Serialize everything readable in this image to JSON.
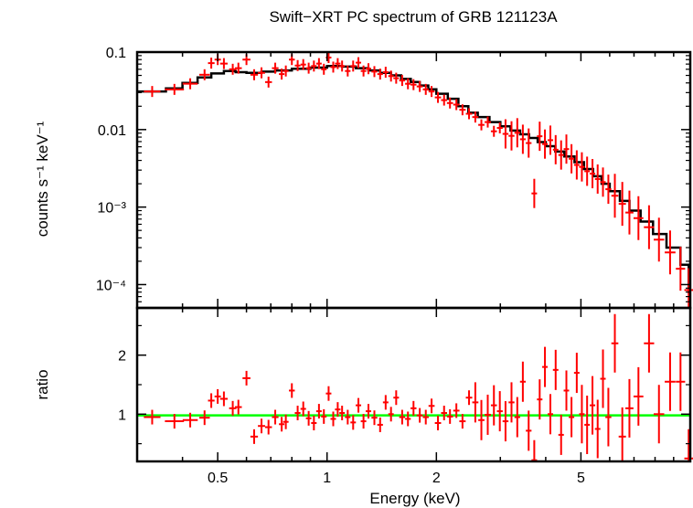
{
  "chart_data": [
    {
      "type": "scatter",
      "title": "Swift−XRT PC spectrum of GRB 121123A",
      "ylabel": "counts s⁻¹ keV⁻¹",
      "xlabel": "",
      "xscale": "log",
      "yscale": "log",
      "xlim": [
        0.3,
        10
      ],
      "ylim": [
        5e-05,
        0.1
      ],
      "yticks": [
        "0.1",
        "0.01",
        "10⁻³",
        "10⁻⁴"
      ],
      "series": [
        {
          "style": "error-bars",
          "color": "#ff0000",
          "points": [
            {
              "x": 0.33,
              "y": 0.031
            },
            {
              "x": 0.38,
              "y": 0.033
            },
            {
              "x": 0.42,
              "y": 0.039
            },
            {
              "x": 0.46,
              "y": 0.051
            },
            {
              "x": 0.48,
              "y": 0.072
            },
            {
              "x": 0.5,
              "y": 0.08
            },
            {
              "x": 0.52,
              "y": 0.071
            },
            {
              "x": 0.55,
              "y": 0.06
            },
            {
              "x": 0.57,
              "y": 0.062
            },
            {
              "x": 0.6,
              "y": 0.08
            },
            {
              "x": 0.63,
              "y": 0.051
            },
            {
              "x": 0.66,
              "y": 0.054
            },
            {
              "x": 0.69,
              "y": 0.041
            },
            {
              "x": 0.72,
              "y": 0.062
            },
            {
              "x": 0.75,
              "y": 0.052
            },
            {
              "x": 0.77,
              "y": 0.057
            },
            {
              "x": 0.8,
              "y": 0.08
            },
            {
              "x": 0.83,
              "y": 0.067
            },
            {
              "x": 0.86,
              "y": 0.069
            },
            {
              "x": 0.89,
              "y": 0.062
            },
            {
              "x": 0.92,
              "y": 0.066
            },
            {
              "x": 0.95,
              "y": 0.071
            },
            {
              "x": 0.98,
              "y": 0.06
            },
            {
              "x": 1.01,
              "y": 0.085
            },
            {
              "x": 1.04,
              "y": 0.064
            },
            {
              "x": 1.07,
              "y": 0.071
            },
            {
              "x": 1.1,
              "y": 0.066
            },
            {
              "x": 1.14,
              "y": 0.057
            },
            {
              "x": 1.18,
              "y": 0.066
            },
            {
              "x": 1.22,
              "y": 0.073
            },
            {
              "x": 1.26,
              "y": 0.057
            },
            {
              "x": 1.3,
              "y": 0.061
            },
            {
              "x": 1.35,
              "y": 0.056
            },
            {
              "x": 1.4,
              "y": 0.052
            },
            {
              "x": 1.45,
              "y": 0.055
            },
            {
              "x": 1.5,
              "y": 0.049
            },
            {
              "x": 1.55,
              "y": 0.046
            },
            {
              "x": 1.61,
              "y": 0.043
            },
            {
              "x": 1.67,
              "y": 0.039
            },
            {
              "x": 1.73,
              "y": 0.038
            },
            {
              "x": 1.8,
              "y": 0.036
            },
            {
              "x": 1.87,
              "y": 0.033
            },
            {
              "x": 1.94,
              "y": 0.031
            },
            {
              "x": 2.02,
              "y": 0.026
            },
            {
              "x": 2.1,
              "y": 0.024
            },
            {
              "x": 2.18,
              "y": 0.022
            },
            {
              "x": 2.27,
              "y": 0.021
            },
            {
              "x": 2.36,
              "y": 0.018
            },
            {
              "x": 2.46,
              "y": 0.016
            },
            {
              "x": 2.56,
              "y": 0.0145
            },
            {
              "x": 2.66,
              "y": 0.0115
            },
            {
              "x": 2.77,
              "y": 0.0125
            },
            {
              "x": 2.88,
              "y": 0.0095
            },
            {
              "x": 2.99,
              "y": 0.0105
            },
            {
              "x": 3.1,
              "y": 0.0088
            },
            {
              "x": 3.22,
              "y": 0.0083
            },
            {
              "x": 3.34,
              "y": 0.0091
            },
            {
              "x": 3.46,
              "y": 0.0075
            },
            {
              "x": 3.59,
              "y": 0.0067
            },
            {
              "x": 3.72,
              "y": 0.0015
            },
            {
              "x": 3.85,
              "y": 0.0082
            },
            {
              "x": 3.98,
              "y": 0.0065
            },
            {
              "x": 4.12,
              "y": 0.0073
            },
            {
              "x": 4.26,
              "y": 0.0055
            },
            {
              "x": 4.41,
              "y": 0.0047
            },
            {
              "x": 4.56,
              "y": 0.0056
            },
            {
              "x": 4.71,
              "y": 0.0042
            },
            {
              "x": 4.87,
              "y": 0.0035
            },
            {
              "x": 5.03,
              "y": 0.0033
            },
            {
              "x": 5.2,
              "y": 0.0029
            },
            {
              "x": 5.38,
              "y": 0.0027
            },
            {
              "x": 5.56,
              "y": 0.0023
            },
            {
              "x": 5.75,
              "y": 0.0021
            },
            {
              "x": 5.95,
              "y": 0.0017
            },
            {
              "x": 6.2,
              "y": 0.0014
            },
            {
              "x": 6.5,
              "y": 0.0011
            },
            {
              "x": 6.8,
              "y": 0.00085
            },
            {
              "x": 7.2,
              "y": 0.00072
            },
            {
              "x": 7.7,
              "y": 0.00055
            },
            {
              "x": 8.2,
              "y": 0.00038
            },
            {
              "x": 8.8,
              "y": 0.00026
            },
            {
              "x": 9.4,
              "y": 0.00016
            },
            {
              "x": 9.9,
              "y": 8.5e-05
            }
          ]
        },
        {
          "style": "step-model",
          "color": "#000000",
          "points": [
            {
              "x": 0.3,
              "y": 0.031
            },
            {
              "x": 0.36,
              "y": 0.034
            },
            {
              "x": 0.4,
              "y": 0.04
            },
            {
              "x": 0.44,
              "y": 0.047
            },
            {
              "x": 0.48,
              "y": 0.053
            },
            {
              "x": 0.52,
              "y": 0.057
            },
            {
              "x": 0.56,
              "y": 0.055
            },
            {
              "x": 0.6,
              "y": 0.054
            },
            {
              "x": 0.66,
              "y": 0.056
            },
            {
              "x": 0.72,
              "y": 0.058
            },
            {
              "x": 0.8,
              "y": 0.061
            },
            {
              "x": 0.9,
              "y": 0.063
            },
            {
              "x": 1.0,
              "y": 0.066
            },
            {
              "x": 1.1,
              "y": 0.065
            },
            {
              "x": 1.2,
              "y": 0.062
            },
            {
              "x": 1.3,
              "y": 0.058
            },
            {
              "x": 1.4,
              "y": 0.054
            },
            {
              "x": 1.5,
              "y": 0.05
            },
            {
              "x": 1.6,
              "y": 0.045
            },
            {
              "x": 1.7,
              "y": 0.041
            },
            {
              "x": 1.8,
              "y": 0.037
            },
            {
              "x": 1.9,
              "y": 0.033
            },
            {
              "x": 2.0,
              "y": 0.029
            },
            {
              "x": 2.15,
              "y": 0.025
            },
            {
              "x": 2.3,
              "y": 0.02
            },
            {
              "x": 2.45,
              "y": 0.0165
            },
            {
              "x": 2.6,
              "y": 0.0145
            },
            {
              "x": 2.8,
              "y": 0.0125
            },
            {
              "x": 3.0,
              "y": 0.011
            },
            {
              "x": 3.2,
              "y": 0.0097
            },
            {
              "x": 3.4,
              "y": 0.0087
            },
            {
              "x": 3.6,
              "y": 0.0078
            },
            {
              "x": 3.8,
              "y": 0.0069
            },
            {
              "x": 4.0,
              "y": 0.0061
            },
            {
              "x": 4.25,
              "y": 0.0052
            },
            {
              "x": 4.5,
              "y": 0.0045
            },
            {
              "x": 4.8,
              "y": 0.0038
            },
            {
              "x": 5.1,
              "y": 0.0031
            },
            {
              "x": 5.4,
              "y": 0.0025
            },
            {
              "x": 5.7,
              "y": 0.002
            },
            {
              "x": 6.0,
              "y": 0.0016
            },
            {
              "x": 6.4,
              "y": 0.0012
            },
            {
              "x": 6.8,
              "y": 0.0009
            },
            {
              "x": 7.3,
              "y": 0.00065
            },
            {
              "x": 7.9,
              "y": 0.00045
            },
            {
              "x": 8.6,
              "y": 0.0003
            },
            {
              "x": 9.4,
              "y": 0.00018
            },
            {
              "x": 9.9,
              "y": 8e-05
            }
          ]
        }
      ]
    },
    {
      "type": "scatter",
      "xlabel": "Energy (keV)",
      "ylabel": "ratio",
      "xscale": "log",
      "xlim": [
        0.3,
        10
      ],
      "ylim": [
        0.2,
        2.8
      ],
      "xticks": [
        "0.5",
        "1",
        "2",
        "5"
      ],
      "yticks": [
        "1",
        "2"
      ],
      "reference_line": {
        "y": 0.98,
        "color": "#00ff00"
      },
      "series": [
        {
          "style": "error-bars",
          "color": "#ff0000",
          "points": [
            {
              "x": 0.33,
              "y": 0.95
            },
            {
              "x": 0.38,
              "y": 0.88
            },
            {
              "x": 0.42,
              "y": 0.9
            },
            {
              "x": 0.46,
              "y": 0.94
            },
            {
              "x": 0.48,
              "y": 1.23
            },
            {
              "x": 0.5,
              "y": 1.3
            },
            {
              "x": 0.52,
              "y": 1.26
            },
            {
              "x": 0.55,
              "y": 1.1
            },
            {
              "x": 0.57,
              "y": 1.12
            },
            {
              "x": 0.6,
              "y": 1.61
            },
            {
              "x": 0.63,
              "y": 0.62
            },
            {
              "x": 0.66,
              "y": 0.8
            },
            {
              "x": 0.69,
              "y": 0.78
            },
            {
              "x": 0.72,
              "y": 0.95
            },
            {
              "x": 0.75,
              "y": 0.83
            },
            {
              "x": 0.77,
              "y": 0.87
            },
            {
              "x": 0.8,
              "y": 1.4
            },
            {
              "x": 0.83,
              "y": 1.02
            },
            {
              "x": 0.86,
              "y": 1.09
            },
            {
              "x": 0.89,
              "y": 0.93
            },
            {
              "x": 0.92,
              "y": 0.85
            },
            {
              "x": 0.95,
              "y": 1.05
            },
            {
              "x": 0.98,
              "y": 0.96
            },
            {
              "x": 1.01,
              "y": 1.35
            },
            {
              "x": 1.04,
              "y": 0.92
            },
            {
              "x": 1.07,
              "y": 1.08
            },
            {
              "x": 1.1,
              "y": 1.02
            },
            {
              "x": 1.14,
              "y": 0.95
            },
            {
              "x": 1.18,
              "y": 0.86
            },
            {
              "x": 1.22,
              "y": 1.15
            },
            {
              "x": 1.26,
              "y": 0.88
            },
            {
              "x": 1.3,
              "y": 1.05
            },
            {
              "x": 1.35,
              "y": 0.94
            },
            {
              "x": 1.4,
              "y": 0.82
            },
            {
              "x": 1.45,
              "y": 1.2
            },
            {
              "x": 1.5,
              "y": 1.0
            },
            {
              "x": 1.55,
              "y": 1.28
            },
            {
              "x": 1.61,
              "y": 0.95
            },
            {
              "x": 1.67,
              "y": 0.92
            },
            {
              "x": 1.73,
              "y": 1.1
            },
            {
              "x": 1.8,
              "y": 0.98
            },
            {
              "x": 1.87,
              "y": 0.95
            },
            {
              "x": 1.94,
              "y": 1.14
            },
            {
              "x": 2.02,
              "y": 0.85
            },
            {
              "x": 2.1,
              "y": 1.02
            },
            {
              "x": 2.18,
              "y": 0.96
            },
            {
              "x": 2.27,
              "y": 1.06
            },
            {
              "x": 2.36,
              "y": 0.88
            },
            {
              "x": 2.46,
              "y": 1.28
            },
            {
              "x": 2.56,
              "y": 1.2
            },
            {
              "x": 2.66,
              "y": 0.9
            },
            {
              "x": 2.77,
              "y": 0.99
            },
            {
              "x": 2.88,
              "y": 1.15
            },
            {
              "x": 2.99,
              "y": 1.05
            },
            {
              "x": 3.1,
              "y": 0.88
            },
            {
              "x": 3.22,
              "y": 1.2
            },
            {
              "x": 3.34,
              "y": 0.95
            },
            {
              "x": 3.46,
              "y": 1.55
            },
            {
              "x": 3.59,
              "y": 0.72
            },
            {
              "x": 3.72,
              "y": 0.22
            },
            {
              "x": 3.85,
              "y": 1.25
            },
            {
              "x": 3.98,
              "y": 1.8
            },
            {
              "x": 4.12,
              "y": 1.0
            },
            {
              "x": 4.26,
              "y": 1.75
            },
            {
              "x": 4.41,
              "y": 0.65
            },
            {
              "x": 4.56,
              "y": 1.4
            },
            {
              "x": 4.71,
              "y": 0.95
            },
            {
              "x": 4.87,
              "y": 1.7
            },
            {
              "x": 5.03,
              "y": 1.0
            },
            {
              "x": 5.2,
              "y": 0.82
            },
            {
              "x": 5.38,
              "y": 1.15
            },
            {
              "x": 5.56,
              "y": 0.75
            },
            {
              "x": 5.75,
              "y": 1.6
            },
            {
              "x": 5.95,
              "y": 0.95
            },
            {
              "x": 6.2,
              "y": 2.2
            },
            {
              "x": 6.5,
              "y": 0.62
            },
            {
              "x": 6.8,
              "y": 1.1
            },
            {
              "x": 7.2,
              "y": 1.3
            },
            {
              "x": 7.7,
              "y": 2.2
            },
            {
              "x": 8.2,
              "y": 1.0
            },
            {
              "x": 8.8,
              "y": 1.55
            },
            {
              "x": 9.4,
              "y": 1.55
            },
            {
              "x": 9.9,
              "y": 0.25
            }
          ]
        }
      ]
    }
  ]
}
